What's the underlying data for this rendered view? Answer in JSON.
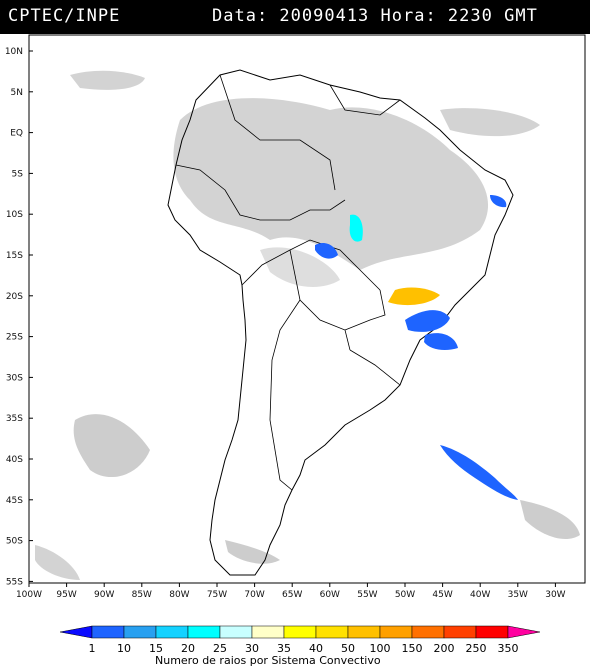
{
  "header": {
    "source": "CPTEC/INPE",
    "datetime": "Data: 20090413 Hora: 2230 GMT"
  },
  "map": {
    "region": "South America",
    "lat_labels": [
      "10N",
      "5N",
      "EQ",
      "5S",
      "10S",
      "15S",
      "20S",
      "25S",
      "30S",
      "35S",
      "40S",
      "45S",
      "50S",
      "55S"
    ],
    "lon_labels": [
      "100W",
      "95W",
      "90W",
      "85W",
      "80W",
      "75W",
      "70W",
      "65W",
      "60W",
      "55W",
      "50W",
      "45W",
      "40W",
      "35W",
      "30W"
    ],
    "cloud_color": "#c4c4c4",
    "coast_color": "#000000"
  },
  "legend": {
    "title": "Numero de raios por Sistema Convectivo",
    "levels": [
      "1",
      "10",
      "15",
      "20",
      "25",
      "30",
      "35",
      "40",
      "50",
      "100",
      "150",
      "200",
      "250",
      "350"
    ],
    "colors": [
      "#0a0aff",
      "#1e64ff",
      "#28a0f0",
      "#14d2ff",
      "#00ffff",
      "#c8ffff",
      "#ffffc8",
      "#ffff00",
      "#ffe100",
      "#ffc000",
      "#ffa000",
      "#ff7000",
      "#ff4000",
      "#ff0000",
      "#ff00a0"
    ]
  }
}
